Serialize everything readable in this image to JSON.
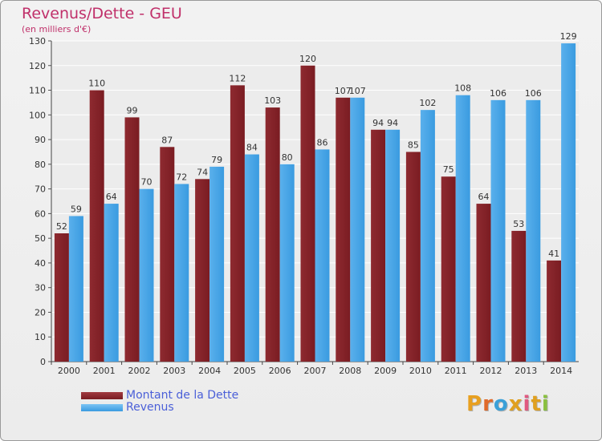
{
  "title": "Revenus/Dette - GEU",
  "subtitle": "(en milliers d'€)",
  "colors": {
    "dette": "#7a1c22",
    "revenus": "#3a9be0",
    "title": "#c0306a",
    "legend_text": "#4a5fd8"
  },
  "legend": [
    {
      "label": "Montant de la Dette",
      "color": "#7a1c22"
    },
    {
      "label": "Revenus",
      "color": "#3a9be0"
    }
  ],
  "logo": {
    "text": "Proxiti",
    "letter_colors": [
      "#e8a020",
      "#e06a2a",
      "#3aa0d8",
      "#e0a020",
      "#e05a80",
      "#e0a020",
      "#8ac040"
    ]
  },
  "chart_data": {
    "type": "bar",
    "categories": [
      "2000",
      "2001",
      "2002",
      "2003",
      "2004",
      "2005",
      "2006",
      "2007",
      "2008",
      "2009",
      "2010",
      "2011",
      "2012",
      "2013",
      "2014"
    ],
    "series": [
      {
        "name": "Montant de la Dette",
        "values": [
          52,
          110,
          99,
          87,
          74,
          112,
          103,
          120,
          107,
          94,
          85,
          75,
          64,
          53,
          41
        ]
      },
      {
        "name": "Revenus",
        "values": [
          59,
          64,
          70,
          72,
          79,
          84,
          80,
          86,
          107,
          94,
          102,
          108,
          106,
          106,
          129
        ]
      }
    ],
    "ylim": [
      0,
      130
    ],
    "yticks": [
      0,
      10,
      20,
      30,
      40,
      50,
      60,
      70,
      80,
      90,
      100,
      110,
      120,
      130
    ],
    "grid": true,
    "legend_position": "bottom-left"
  }
}
